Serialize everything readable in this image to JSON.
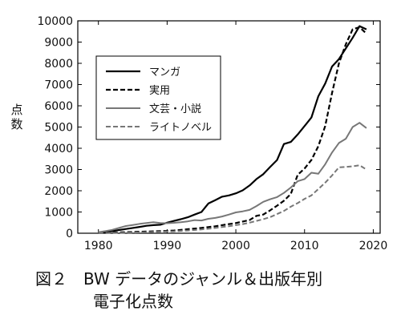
{
  "chart_data": {
    "type": "line",
    "ylabel": "点数",
    "xlabel": "",
    "xlim": [
      1977,
      2021
    ],
    "ylim": [
      0,
      10000
    ],
    "xticks": [
      1980,
      1990,
      2000,
      2010,
      2020
    ],
    "yticks": [
      0,
      1000,
      2000,
      3000,
      4000,
      5000,
      6000,
      7000,
      8000,
      9000,
      10000
    ],
    "grid": false,
    "legend_position": "upper-left",
    "series": [
      {
        "name": "マンガ",
        "color": "#000000",
        "dash": "solid",
        "x": [
          1980,
          1981,
          1982,
          1983,
          1984,
          1985,
          1986,
          1987,
          1988,
          1989,
          1990,
          1991,
          1992,
          1993,
          1994,
          1995,
          1996,
          1997,
          1998,
          1999,
          2000,
          2001,
          2002,
          2003,
          2004,
          2005,
          2006,
          2007,
          2008,
          2009,
          2010,
          2011,
          2012,
          2013,
          2014,
          2015,
          2016,
          2017,
          2018,
          2019
        ],
        "y": [
          30,
          60,
          100,
          150,
          200,
          250,
          300,
          350,
          380,
          400,
          500,
          580,
          660,
          750,
          880,
          1000,
          1400,
          1560,
          1720,
          1780,
          1880,
          2020,
          2250,
          2550,
          2780,
          3120,
          3450,
          4200,
          4300,
          4650,
          5050,
          5450,
          6450,
          7050,
          7850,
          8200,
          8700,
          9200,
          9750,
          9600
        ]
      },
      {
        "name": "実用",
        "color": "#000000",
        "dash": "dashed",
        "x": [
          1980,
          1981,
          1982,
          1983,
          1984,
          1985,
          1986,
          1987,
          1988,
          1989,
          1990,
          1991,
          1992,
          1993,
          1994,
          1995,
          1996,
          1997,
          1998,
          1999,
          2000,
          2001,
          2002,
          2003,
          2004,
          2005,
          2006,
          2007,
          2008,
          2009,
          2010,
          2011,
          2012,
          2013,
          2014,
          2015,
          2016,
          2017,
          2018,
          2019
        ],
        "y": [
          10,
          20,
          30,
          40,
          50,
          60,
          70,
          80,
          90,
          100,
          110,
          130,
          160,
          190,
          220,
          250,
          290,
          330,
          380,
          430,
          480,
          550,
          620,
          820,
          880,
          1080,
          1300,
          1530,
          1850,
          2750,
          3050,
          3450,
          4100,
          5050,
          6600,
          8000,
          8900,
          9600,
          9700,
          9400
        ]
      },
      {
        "name": "文芸・小説",
        "color": "#777777",
        "dash": "solid",
        "x": [
          1980,
          1981,
          1982,
          1983,
          1984,
          1985,
          1986,
          1987,
          1988,
          1989,
          1990,
          1991,
          1992,
          1993,
          1994,
          1995,
          1996,
          1997,
          1998,
          1999,
          2000,
          2001,
          2002,
          2003,
          2004,
          2005,
          2006,
          2007,
          2008,
          2009,
          2010,
          2011,
          2012,
          2013,
          2014,
          2015,
          2016,
          2017,
          2018,
          2019
        ],
        "y": [
          50,
          100,
          160,
          250,
          340,
          390,
          440,
          480,
          520,
          480,
          470,
          490,
          520,
          560,
          620,
          600,
          680,
          720,
          790,
          880,
          980,
          1030,
          1100,
          1280,
          1480,
          1600,
          1700,
          1900,
          2150,
          2450,
          2550,
          2850,
          2800,
          3250,
          3800,
          4250,
          4450,
          5000,
          5200,
          4950
        ]
      },
      {
        "name": "ライトノベル",
        "color": "#777777",
        "dash": "dashed",
        "x": [
          1980,
          1981,
          1982,
          1983,
          1984,
          1985,
          1986,
          1987,
          1988,
          1989,
          1990,
          1991,
          1992,
          1993,
          1994,
          1995,
          1996,
          1997,
          1998,
          1999,
          2000,
          2001,
          2002,
          2003,
          2004,
          2005,
          2006,
          2007,
          2008,
          2009,
          2010,
          2011,
          2012,
          2013,
          2014,
          2015,
          2016,
          2017,
          2018,
          2019
        ],
        "y": [
          5,
          10,
          15,
          20,
          25,
          30,
          40,
          50,
          60,
          70,
          80,
          90,
          110,
          130,
          150,
          180,
          210,
          250,
          290,
          330,
          380,
          430,
          500,
          580,
          660,
          760,
          900,
          1050,
          1250,
          1420,
          1620,
          1780,
          2080,
          2380,
          2720,
          3100,
          3120,
          3150,
          3200,
          3000
        ]
      }
    ]
  },
  "caption": {
    "line1": "図２　BW データのジャンル＆出版年別",
    "line2": "電子化点数"
  }
}
